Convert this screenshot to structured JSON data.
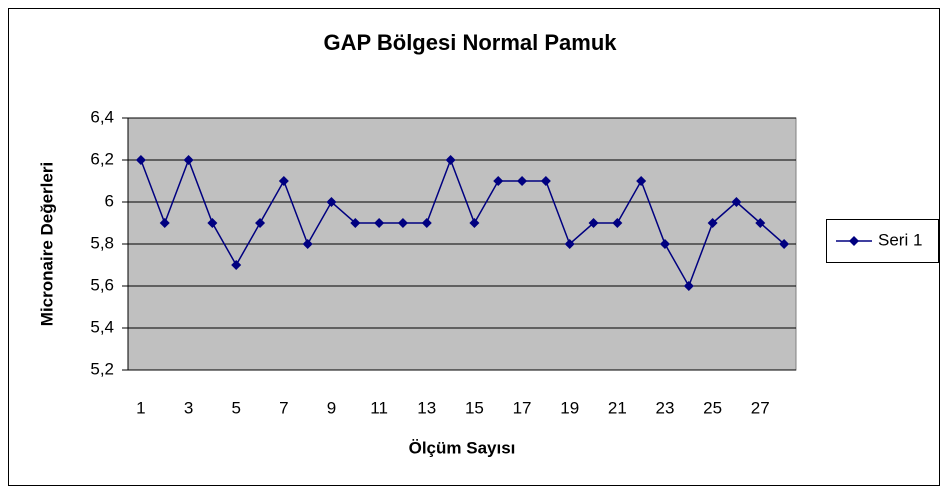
{
  "chart_data": {
    "type": "line",
    "title": "GAP Bölgesi Normal Pamuk",
    "x_label": "Ölçüm Sayısı",
    "y_label": "Micronaire Değerleri",
    "categories": [
      1,
      null,
      3,
      null,
      5,
      null,
      7,
      null,
      9,
      null,
      11,
      null,
      13,
      null,
      15,
      null,
      17,
      null,
      19,
      null,
      21,
      null,
      23,
      null,
      25,
      null,
      27,
      null
    ],
    "series": [
      {
        "name": "Seri 1",
        "color": "#000080",
        "values": [
          6.2,
          5.9,
          6.2,
          5.9,
          5.7,
          5.9,
          6.1,
          5.8,
          6.0,
          5.9,
          5.9,
          5.9,
          5.9,
          6.2,
          5.9,
          6.1,
          6.1,
          6.1,
          5.8,
          5.9,
          5.9,
          6.1,
          5.8,
          5.6,
          5.9,
          6.0,
          5.9,
          5.8
        ]
      }
    ],
    "ylim": [
      5.2,
      6.4
    ],
    "yticks": [
      {
        "value": 5.2,
        "label": "5,2"
      },
      {
        "value": 5.4,
        "label": "5,4"
      },
      {
        "value": 5.6,
        "label": "5,6"
      },
      {
        "value": 5.8,
        "label": "5,8"
      },
      6,
      {
        "value": 6.2,
        "label": "6,2"
      },
      {
        "value": 6.4,
        "label": "6,4"
      }
    ],
    "grid": true,
    "legend": "right"
  }
}
